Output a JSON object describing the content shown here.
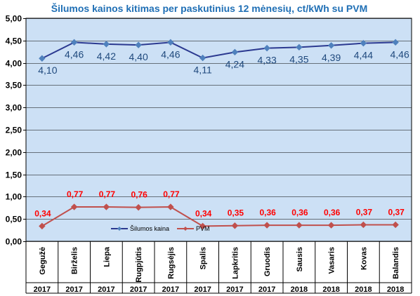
{
  "chart_data": {
    "type": "line",
    "title": "Šilumos kainos kitimas per paskutinius 12 mėnesių, ct/kWh su PVM",
    "categories": [
      "Gegužė",
      "Birželis",
      "Liepa",
      "Rugpjūtis",
      "Rugsėjis",
      "Spalis",
      "Lapkritis",
      "Gruodis",
      "Sausis",
      "Vasaris",
      "Kovas",
      "Balandis"
    ],
    "years": [
      "2017",
      "2017",
      "2017",
      "2017",
      "2017",
      "2017",
      "2017",
      "2017",
      "2018",
      "2018",
      "2018",
      "2018"
    ],
    "ylim": [
      0,
      5
    ],
    "yticks": [
      0,
      0.5,
      1,
      1.5,
      2,
      2.5,
      3,
      3.5,
      4,
      4.5,
      5
    ],
    "ytick_labels": [
      "0,00",
      "0,50",
      "1,00",
      "1,50",
      "2,00",
      "2,50",
      "3,00",
      "3,50",
      "4,00",
      "4,50",
      "5,00"
    ],
    "grid": true,
    "legend_position": "inside-bottom-left",
    "series": [
      {
        "name": "Šilumos kaina",
        "color": "#2B3990",
        "marker_color": "#4F81BD",
        "label_color": "#1F497D",
        "values": [
          4.1,
          4.46,
          4.42,
          4.4,
          4.46,
          4.11,
          4.24,
          4.33,
          4.35,
          4.39,
          4.44,
          4.46
        ],
        "labels": [
          "4,10",
          "4,46",
          "4,42",
          "4,40",
          "4,46",
          "4,11",
          "4,24",
          "4,33",
          "4,35",
          "4,39",
          "4,44",
          "4,46"
        ]
      },
      {
        "name": "PVM",
        "color": "#C0504D",
        "marker_color": "#C0504D",
        "label_color": "#FF0000",
        "values": [
          0.34,
          0.77,
          0.77,
          0.76,
          0.77,
          0.34,
          0.35,
          0.36,
          0.36,
          0.36,
          0.37,
          0.37
        ],
        "labels": [
          "0,34",
          "0,77",
          "0,77",
          "0,76",
          "0,77",
          "0,34",
          "0,35",
          "0,36",
          "0,36",
          "0,36",
          "0,37",
          "0,37"
        ]
      }
    ],
    "colors": {
      "plot_background": "#CCE0F5",
      "gridline": "#000000",
      "title": "#1F6FB5"
    }
  }
}
